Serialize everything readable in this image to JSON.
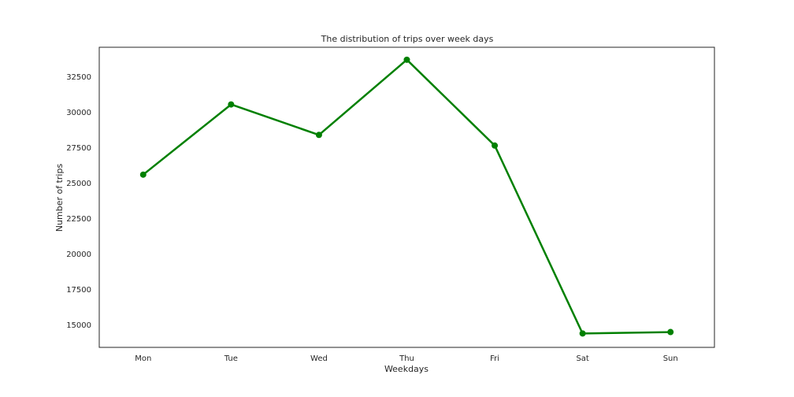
{
  "chart_data": {
    "type": "line",
    "title": "The distribution of trips over week days",
    "xlabel": "Weekdays",
    "ylabel": "Number of trips",
    "categories": [
      "Mon",
      "Tue",
      "Wed",
      "Thu",
      "Fri",
      "Sat",
      "Sun"
    ],
    "values": [
      25600,
      30550,
      28400,
      33700,
      27650,
      14400,
      14500
    ],
    "ylim": [
      13420,
      34580
    ],
    "yticks": [
      15000,
      17500,
      20000,
      22500,
      25000,
      27500,
      30000,
      32500
    ],
    "ytick_labels": [
      "15000",
      "17500",
      "20000",
      "22500",
      "25000",
      "27500",
      "30000",
      "32500"
    ],
    "grid": false,
    "legend": "none",
    "color": "#008000"
  }
}
